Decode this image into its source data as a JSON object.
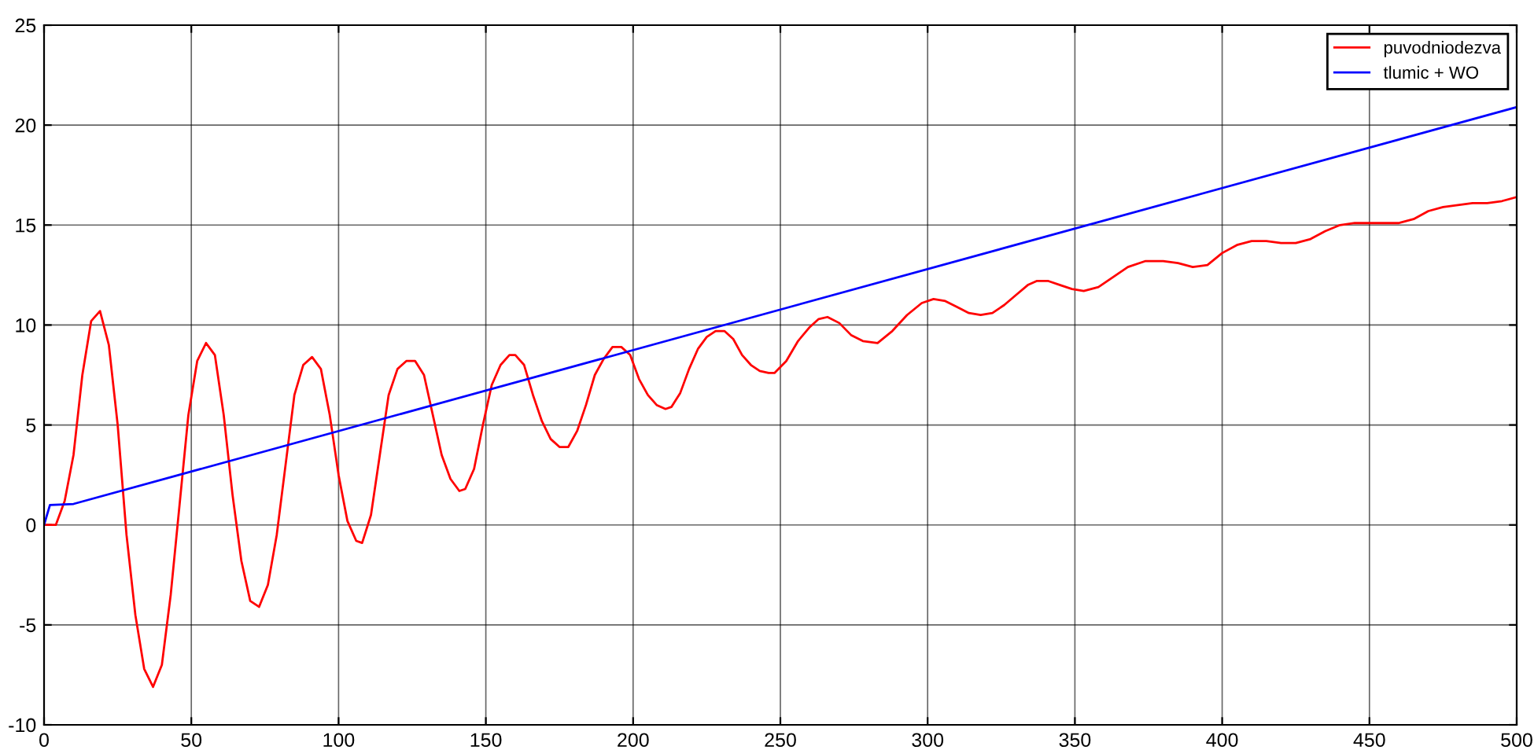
{
  "chart_data": {
    "type": "line",
    "xlim": [
      0,
      500
    ],
    "ylim": [
      -10,
      25
    ],
    "xticks": [
      0,
      50,
      100,
      150,
      200,
      250,
      300,
      350,
      400,
      450,
      500
    ],
    "yticks": [
      -10,
      -5,
      0,
      5,
      10,
      15,
      20,
      25
    ],
    "grid": true,
    "legend": "top right",
    "series": [
      {
        "name": "puvodniodezva",
        "color": "#ff0000",
        "x": [
          0,
          4,
          7,
          10,
          13,
          16,
          19,
          22,
          25,
          28,
          31,
          34,
          37,
          40,
          43,
          46,
          49,
          52,
          55,
          58,
          61,
          64,
          67,
          70,
          73,
          76,
          79,
          82,
          85,
          88,
          91,
          94,
          97,
          100,
          103,
          106,
          108,
          111,
          114,
          117,
          120,
          123,
          126,
          129,
          132,
          135,
          138,
          141,
          143,
          146,
          149,
          152,
          155,
          158,
          160,
          163,
          166,
          169,
          172,
          175,
          178,
          181,
          184,
          187,
          190,
          193,
          196,
          199,
          202,
          205,
          208,
          211,
          213,
          216,
          219,
          222,
          225,
          228,
          231,
          234,
          237,
          240,
          243,
          246,
          248,
          252,
          256,
          260,
          263,
          266,
          270,
          274,
          278,
          283,
          288,
          293,
          298,
          302,
          306,
          310,
          314,
          318,
          322,
          326,
          330,
          334,
          337,
          341,
          345,
          349,
          353,
          358,
          363,
          368,
          374,
          380,
          385,
          390,
          395,
          400,
          405,
          410,
          415,
          420,
          425,
          430,
          435,
          440,
          445,
          450,
          455,
          460,
          465,
          470,
          475,
          480,
          485,
          490,
          495,
          500
        ],
        "values": [
          0,
          0,
          1.2,
          3.5,
          7.5,
          10.2,
          10.7,
          9.0,
          5.0,
          -0.5,
          -4.5,
          -7.2,
          -8.1,
          -7.0,
          -3.5,
          1.0,
          5.5,
          8.2,
          9.1,
          8.5,
          5.5,
          1.5,
          -1.8,
          -3.8,
          -4.1,
          -3.0,
          -0.5,
          3.0,
          6.5,
          8.0,
          8.4,
          7.8,
          5.5,
          2.5,
          0.2,
          -0.8,
          -0.9,
          0.5,
          3.5,
          6.5,
          7.8,
          8.2,
          8.2,
          7.5,
          5.5,
          3.5,
          2.3,
          1.7,
          1.8,
          2.8,
          5.0,
          7.0,
          8.0,
          8.5,
          8.5,
          8.0,
          6.5,
          5.2,
          4.3,
          3.9,
          3.9,
          4.7,
          6.0,
          7.5,
          8.3,
          8.9,
          8.9,
          8.5,
          7.3,
          6.5,
          6.0,
          5.8,
          5.9,
          6.6,
          7.8,
          8.8,
          9.4,
          9.7,
          9.7,
          9.3,
          8.5,
          8.0,
          7.7,
          7.6,
          7.6,
          8.2,
          9.2,
          9.9,
          10.3,
          10.4,
          10.1,
          9.5,
          9.2,
          9.1,
          9.7,
          10.5,
          11.1,
          11.3,
          11.2,
          10.9,
          10.6,
          10.5,
          10.6,
          11.0,
          11.5,
          12.0,
          12.2,
          12.2,
          12.0,
          11.8,
          11.7,
          11.9,
          12.4,
          12.9,
          13.2,
          13.2,
          13.1,
          12.9,
          13.0,
          13.6,
          14.0,
          14.2,
          14.2,
          14.1,
          14.1,
          14.3,
          14.7,
          15.0,
          15.1,
          15.1,
          15.1,
          15.1,
          15.3,
          15.7,
          15.9,
          16.0,
          16.1,
          16.1,
          16.2,
          16.4
        ]
      },
      {
        "name": "tlumic + WO",
        "color": "#0000ff",
        "x": [
          0,
          2,
          10,
          500
        ],
        "values": [
          0,
          1.0,
          1.05,
          20.9
        ]
      }
    ]
  }
}
